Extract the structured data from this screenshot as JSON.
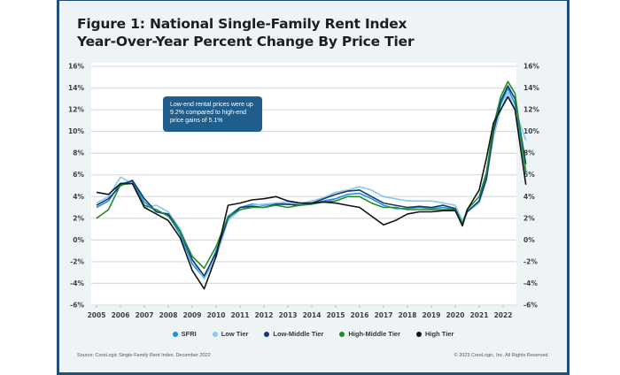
{
  "chart_data": {
    "type": "line",
    "title": "Figure 1: National Single-Family Rent Index",
    "subtitle": "Year-Over-Year Percent Change By Price Tier",
    "xlabel": "",
    "ylabel": "",
    "ylim": [
      -6,
      16
    ],
    "yticks": [
      -6,
      -4,
      -2,
      0,
      2,
      4,
      6,
      8,
      10,
      12,
      14,
      16
    ],
    "ytick_labels": [
      "-6%",
      "-4%",
      "-2%",
      "0%",
      "2%",
      "4%",
      "6%",
      "8%",
      "10%",
      "12%",
      "14%",
      "16%"
    ],
    "xlim": [
      2005,
      2022.95
    ],
    "xticks": [
      2005,
      2006,
      2007,
      2008,
      2009,
      2010,
      2011,
      2012,
      2013,
      2014,
      2015,
      2016,
      2017,
      2018,
      2019,
      2020,
      2021,
      2022
    ],
    "xtick_labels": [
      "2005",
      "2006",
      "2007",
      "2008",
      "2009",
      "2010",
      "2011",
      "2012",
      "2013",
      "2014",
      "2015",
      "2016",
      "2017",
      "2018",
      "2019",
      "2020",
      "2021",
      "2022"
    ],
    "grid": true,
    "legend_position": "bottom",
    "annotation": "Low-end rental prices were up 9.2% compared to high-end price gains of 5.1%",
    "x": [
      2005.0,
      2005.5,
      2006.0,
      2006.5,
      2007.0,
      2007.5,
      2008.0,
      2008.5,
      2009.0,
      2009.5,
      2010.0,
      2010.5,
      2011.0,
      2011.5,
      2012.0,
      2012.5,
      2013.0,
      2013.5,
      2014.0,
      2014.5,
      2015.0,
      2015.5,
      2016.0,
      2016.5,
      2017.0,
      2017.5,
      2018.0,
      2018.5,
      2019.0,
      2019.5,
      2020.0,
      2020.3,
      2020.5,
      2021.0,
      2021.3,
      2021.6,
      2021.9,
      2022.2,
      2022.5,
      2022.95
    ],
    "series": [
      {
        "name": "SFRI",
        "color": "#1e90e0",
        "values": [
          3.0,
          3.6,
          5.2,
          5.4,
          3.5,
          2.6,
          2.3,
          0.5,
          -2.2,
          -3.5,
          -1.0,
          2.2,
          3.0,
          3.3,
          3.2,
          3.4,
          3.3,
          3.2,
          3.4,
          3.6,
          3.8,
          4.2,
          4.3,
          3.8,
          3.2,
          2.9,
          2.9,
          3.0,
          2.9,
          3.0,
          2.8,
          1.6,
          2.6,
          3.6,
          6.0,
          10.0,
          12.5,
          14.0,
          12.5,
          6.3
        ]
      },
      {
        "name": "Low Tier",
        "color": "#8cc6f0",
        "values": [
          3.4,
          4.0,
          5.8,
          5.2,
          3.0,
          3.2,
          2.6,
          1.0,
          -1.8,
          -3.6,
          -1.6,
          1.8,
          2.8,
          3.2,
          3.3,
          3.4,
          3.5,
          3.3,
          3.6,
          3.9,
          4.4,
          4.6,
          4.9,
          4.6,
          4.0,
          3.8,
          3.6,
          3.6,
          3.6,
          3.4,
          3.2,
          1.8,
          2.6,
          3.4,
          5.5,
          9.5,
          12.0,
          13.6,
          12.0,
          9.2
        ]
      },
      {
        "name": "Low-Middle Tier",
        "color": "#123b6e",
        "values": [
          3.2,
          3.8,
          5.0,
          5.5,
          3.8,
          2.6,
          2.4,
          0.8,
          -1.8,
          -3.3,
          -1.2,
          2.0,
          3.0,
          3.1,
          3.0,
          3.3,
          3.3,
          3.2,
          3.4,
          3.8,
          4.2,
          4.5,
          4.6,
          4.0,
          3.4,
          3.2,
          3.0,
          3.1,
          3.0,
          3.2,
          2.9,
          1.5,
          2.6,
          3.6,
          5.6,
          10.0,
          12.8,
          14.2,
          13.0,
          7.0
        ]
      },
      {
        "name": "High-Middle Tier",
        "color": "#1e8c2a",
        "values": [
          2.0,
          2.8,
          5.1,
          5.2,
          3.2,
          2.8,
          2.2,
          0.8,
          -1.5,
          -2.6,
          -0.6,
          2.1,
          2.8,
          3.0,
          3.0,
          3.2,
          3.0,
          3.2,
          3.3,
          3.5,
          3.6,
          4.0,
          4.0,
          3.4,
          3.0,
          3.0,
          2.8,
          2.8,
          2.8,
          2.8,
          2.8,
          1.5,
          2.8,
          4.0,
          6.2,
          10.5,
          13.2,
          14.6,
          13.5,
          6.2
        ]
      },
      {
        "name": "High Tier",
        "color": "#111418",
        "values": [
          4.4,
          4.2,
          5.2,
          5.2,
          3.0,
          2.4,
          1.8,
          0.2,
          -2.8,
          -4.5,
          -1.5,
          3.2,
          3.4,
          3.7,
          3.8,
          4.0,
          3.6,
          3.4,
          3.4,
          3.5,
          3.4,
          3.2,
          3.0,
          2.2,
          1.4,
          1.8,
          2.4,
          2.6,
          2.6,
          2.7,
          2.7,
          1.3,
          2.8,
          4.6,
          7.5,
          10.8,
          12.0,
          13.2,
          12.0,
          5.1
        ]
      }
    ]
  },
  "source": "Source: CoreLogic Single-Family Rent Index, December 2022",
  "copyright": "© 2023 CoreLogic, Inc. All Rights Reserved."
}
